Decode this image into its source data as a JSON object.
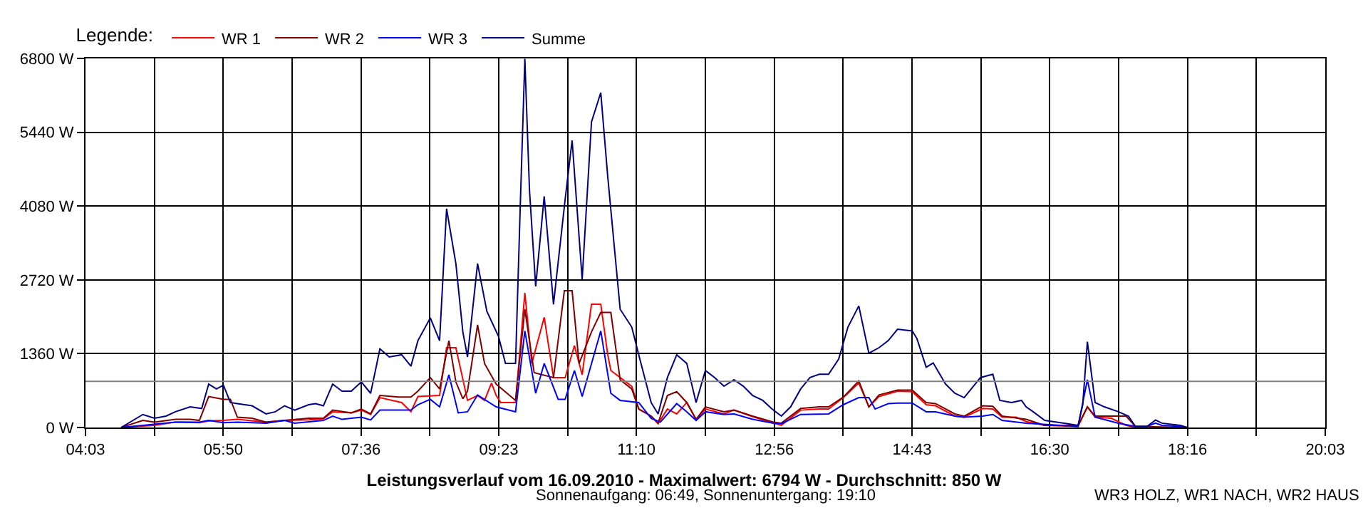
{
  "chart_data": {
    "type": "line",
    "title": "Leistungsverlauf vom 16.09.2010 - Maximalwert: 6794 W - Durchschnitt: 850 W",
    "subtitle": "Sonnenaufgang: 06:49, Sonnenuntergang: 19:10",
    "legend_title": "Legende:",
    "annotations": [
      "WR3 HOLZ, WR1 NACH, WR2 HAUS"
    ],
    "xlim": [
      4.05,
      20.05
    ],
    "xticks": [
      {
        "value": 4.05,
        "label": "04:03"
      },
      {
        "value": 4.939,
        "label": null
      },
      {
        "value": 5.828,
        "label": "05:50"
      },
      {
        "value": 6.717,
        "label": null
      },
      {
        "value": 7.606,
        "label": "07:36"
      },
      {
        "value": 8.494,
        "label": null
      },
      {
        "value": 9.383,
        "label": "09:23"
      },
      {
        "value": 10.272,
        "label": null
      },
      {
        "value": 11.161,
        "label": "11:10"
      },
      {
        "value": 12.05,
        "label": null
      },
      {
        "value": 12.939,
        "label": "12:56"
      },
      {
        "value": 13.828,
        "label": null
      },
      {
        "value": 14.717,
        "label": "14:43"
      },
      {
        "value": 15.606,
        "label": null
      },
      {
        "value": 16.494,
        "label": "16:30"
      },
      {
        "value": 17.383,
        "label": null
      },
      {
        "value": 18.272,
        "label": "18:16"
      },
      {
        "value": 19.161,
        "label": null
      },
      {
        "value": 20.05,
        "label": "20:03"
      }
    ],
    "ylim": [
      0,
      6800
    ],
    "yticks": [
      {
        "value": 0,
        "label": "0 W"
      },
      {
        "value": 1360,
        "label": "1360 W"
      },
      {
        "value": 2720,
        "label": "2720 W"
      },
      {
        "value": 4080,
        "label": "4080 W"
      },
      {
        "value": 5440,
        "label": "5440 W"
      },
      {
        "value": 6800,
        "label": "6800 W"
      }
    ],
    "grid": true,
    "legend": "top left",
    "marker": "none",
    "line_style": "solid",
    "ref_lines": [
      {
        "axis": "y",
        "value": 850,
        "label": null,
        "color": "#808080"
      }
    ],
    "series": [
      {
        "name": "WR 1",
        "color": "#ff0000",
        "x": [
          4.51,
          4.94,
          5.21,
          5.52,
          5.64,
          5.83,
          6.01,
          6.38,
          6.62,
          6.93,
          7.12,
          7.24,
          7.48,
          7.61,
          7.73,
          7.85,
          8.13,
          8.25,
          8.34,
          8.62,
          8.71,
          8.83,
          8.98,
          9.11,
          9.2,
          9.29,
          9.35,
          9.41,
          9.6,
          9.72,
          9.81,
          9.97,
          10.09,
          10.24,
          10.36,
          10.46,
          10.58,
          10.7,
          10.79,
          10.83,
          11.1,
          11.19,
          11.35,
          11.44,
          11.56,
          11.68,
          11.81,
          11.93,
          12.05,
          12.29,
          12.42,
          12.66,
          12.93,
          13.03,
          13.28,
          13.52,
          13.64,
          13.83,
          14.03,
          14.16,
          14.29,
          14.53,
          14.72,
          14.9,
          15.02,
          15.27,
          15.39,
          15.63,
          15.76,
          15.88,
          16.06,
          16.19,
          16.43,
          16.86,
          16.98,
          17.08,
          17.29,
          17.48,
          17.6
        ],
        "values": [
          0,
          40,
          100,
          90,
          120,
          130,
          150,
          100,
          130,
          140,
          160,
          290,
          270,
          320,
          240,
          550,
          460,
          290,
          570,
          590,
          1470,
          1470,
          500,
          590,
          500,
          820,
          590,
          460,
          460,
          2480,
          1180,
          2030,
          920,
          920,
          1510,
          970,
          2270,
          2270,
          1340,
          1050,
          760,
          340,
          210,
          70,
          340,
          250,
          460,
          150,
          340,
          250,
          320,
          200,
          80,
          40,
          320,
          340,
          340,
          550,
          820,
          380,
          570,
          670,
          660,
          420,
          400,
          210,
          190,
          350,
          340,
          190,
          190,
          110,
          40,
          20,
          380,
          190,
          170,
          40,
          0
        ]
      },
      {
        "name": "WR 2",
        "color": "#800000",
        "x": [
          4.51,
          4.79,
          4.94,
          5.21,
          5.4,
          5.52,
          5.64,
          5.83,
          5.92,
          6.01,
          6.2,
          6.38,
          6.62,
          6.93,
          7.12,
          7.24,
          7.48,
          7.61,
          7.73,
          7.85,
          8.09,
          8.25,
          8.34,
          8.5,
          8.62,
          8.74,
          8.83,
          8.92,
          8.98,
          9.11,
          9.2,
          9.35,
          9.6,
          9.72,
          9.84,
          10.09,
          10.23,
          10.33,
          10.42,
          10.58,
          10.7,
          10.83,
          10.95,
          11.1,
          11.19,
          11.35,
          11.44,
          11.56,
          11.68,
          11.81,
          11.93,
          12.05,
          12.29,
          12.42,
          12.66,
          12.93,
          13.03,
          13.28,
          13.52,
          13.64,
          13.83,
          14.03,
          14.16,
          14.29,
          14.53,
          14.72,
          14.9,
          15.02,
          15.27,
          15.39,
          15.63,
          15.76,
          15.88,
          16.19,
          16.43,
          16.86,
          16.98,
          17.08,
          17.48,
          17.6,
          18.27
        ],
        "values": [
          0,
          130,
          100,
          150,
          150,
          130,
          570,
          520,
          520,
          190,
          170,
          100,
          130,
          170,
          170,
          320,
          270,
          340,
          250,
          590,
          560,
          560,
          670,
          920,
          710,
          1600,
          840,
          530,
          670,
          1890,
          1180,
          800,
          500,
          2180,
          1010,
          920,
          2520,
          2520,
          1180,
          1760,
          2120,
          2120,
          880,
          710,
          340,
          210,
          80,
          590,
          660,
          460,
          150,
          380,
          290,
          320,
          210,
          100,
          80,
          350,
          380,
          380,
          560,
          860,
          380,
          600,
          690,
          690,
          460,
          440,
          250,
          210,
          400,
          390,
          210,
          150,
          40,
          40,
          380,
          210,
          210,
          20,
          0
        ]
      },
      {
        "name": "WR 3",
        "color": "#0000ff",
        "x": [
          4.51,
          4.79,
          5.21,
          5.52,
          5.64,
          5.83,
          6.01,
          6.38,
          6.62,
          6.75,
          7.12,
          7.24,
          7.36,
          7.61,
          7.73,
          7.85,
          8.25,
          8.34,
          8.5,
          8.62,
          8.74,
          8.86,
          8.98,
          9.11,
          9.35,
          9.6,
          9.72,
          9.86,
          9.97,
          10.15,
          10.24,
          10.36,
          10.46,
          10.7,
          10.83,
          10.95,
          11.19,
          11.35,
          11.47,
          11.68,
          11.81,
          11.93,
          12.05,
          12.29,
          12.42,
          12.66,
          12.93,
          13.03,
          13.28,
          13.64,
          13.83,
          14.03,
          14.16,
          14.24,
          14.41,
          14.53,
          14.72,
          14.9,
          15.02,
          15.27,
          15.39,
          15.63,
          15.76,
          15.88,
          16.19,
          16.86,
          16.98,
          17.08,
          17.38,
          17.6,
          17.75,
          17.86,
          17.94,
          18.18,
          18.27
        ],
        "values": [
          0,
          40,
          100,
          100,
          130,
          90,
          100,
          80,
          130,
          80,
          130,
          210,
          150,
          190,
          140,
          320,
          320,
          420,
          520,
          380,
          970,
          270,
          290,
          600,
          380,
          290,
          1780,
          630,
          1180,
          520,
          520,
          1050,
          570,
          1780,
          630,
          500,
          460,
          170,
          100,
          440,
          290,
          130,
          290,
          240,
          250,
          150,
          80,
          70,
          240,
          250,
          420,
          550,
          550,
          340,
          440,
          450,
          450,
          290,
          290,
          210,
          190,
          210,
          240,
          130,
          80,
          20,
          880,
          190,
          80,
          20,
          20,
          80,
          40,
          20,
          0
        ]
      },
      {
        "name": "Summe",
        "color": "#000080",
        "x": [
          4.51,
          4.79,
          4.94,
          5.09,
          5.21,
          5.4,
          5.55,
          5.64,
          5.74,
          5.83,
          5.92,
          6.01,
          6.2,
          6.38,
          6.5,
          6.62,
          6.75,
          6.93,
          7.02,
          7.12,
          7.24,
          7.36,
          7.48,
          7.61,
          7.73,
          7.85,
          7.97,
          8.13,
          8.25,
          8.34,
          8.5,
          8.62,
          8.71,
          8.83,
          8.92,
          8.98,
          9.11,
          9.23,
          9.38,
          9.47,
          9.6,
          9.66,
          9.72,
          9.78,
          9.86,
          9.97,
          10.09,
          10.24,
          10.33,
          10.46,
          10.58,
          10.7,
          10.79,
          10.95,
          11.1,
          11.19,
          11.35,
          11.44,
          11.56,
          11.68,
          11.81,
          11.93,
          12.05,
          12.17,
          12.29,
          12.42,
          12.54,
          12.66,
          12.79,
          12.91,
          13.03,
          13.15,
          13.28,
          13.4,
          13.52,
          13.64,
          13.77,
          13.89,
          14.03,
          14.16,
          14.29,
          14.41,
          14.53,
          14.72,
          14.78,
          14.9,
          14.99,
          15.15,
          15.27,
          15.39,
          15.6,
          15.76,
          15.85,
          16,
          16.13,
          16.19,
          16.28,
          16.43,
          16.68,
          16.86,
          16.92,
          16.98,
          17.08,
          17.2,
          17.38,
          17.51,
          17.6,
          17.75,
          17.86,
          17.94,
          18.18,
          18.27
        ],
        "values": [
          0,
          240,
          170,
          210,
          290,
          380,
          350,
          800,
          710,
          780,
          460,
          440,
          400,
          250,
          290,
          400,
          320,
          420,
          440,
          400,
          800,
          670,
          670,
          840,
          630,
          1450,
          1300,
          1340,
          1130,
          1600,
          2020,
          1600,
          4030,
          3020,
          1760,
          1300,
          3020,
          2140,
          1680,
          1180,
          1180,
          4030,
          6794,
          4370,
          2600,
          4260,
          2270,
          4200,
          5290,
          2730,
          5630,
          6170,
          4620,
          2180,
          1850,
          1340,
          460,
          250,
          920,
          1340,
          1180,
          460,
          1050,
          920,
          760,
          880,
          760,
          590,
          500,
          340,
          210,
          380,
          710,
          920,
          980,
          980,
          1260,
          1850,
          2240,
          1370,
          1470,
          1600,
          1810,
          1780,
          1640,
          1110,
          1190,
          800,
          630,
          550,
          920,
          980,
          500,
          460,
          500,
          380,
          290,
          130,
          80,
          40,
          420,
          1580,
          460,
          380,
          290,
          210,
          20,
          20,
          140,
          80,
          40,
          0
        ]
      }
    ]
  }
}
